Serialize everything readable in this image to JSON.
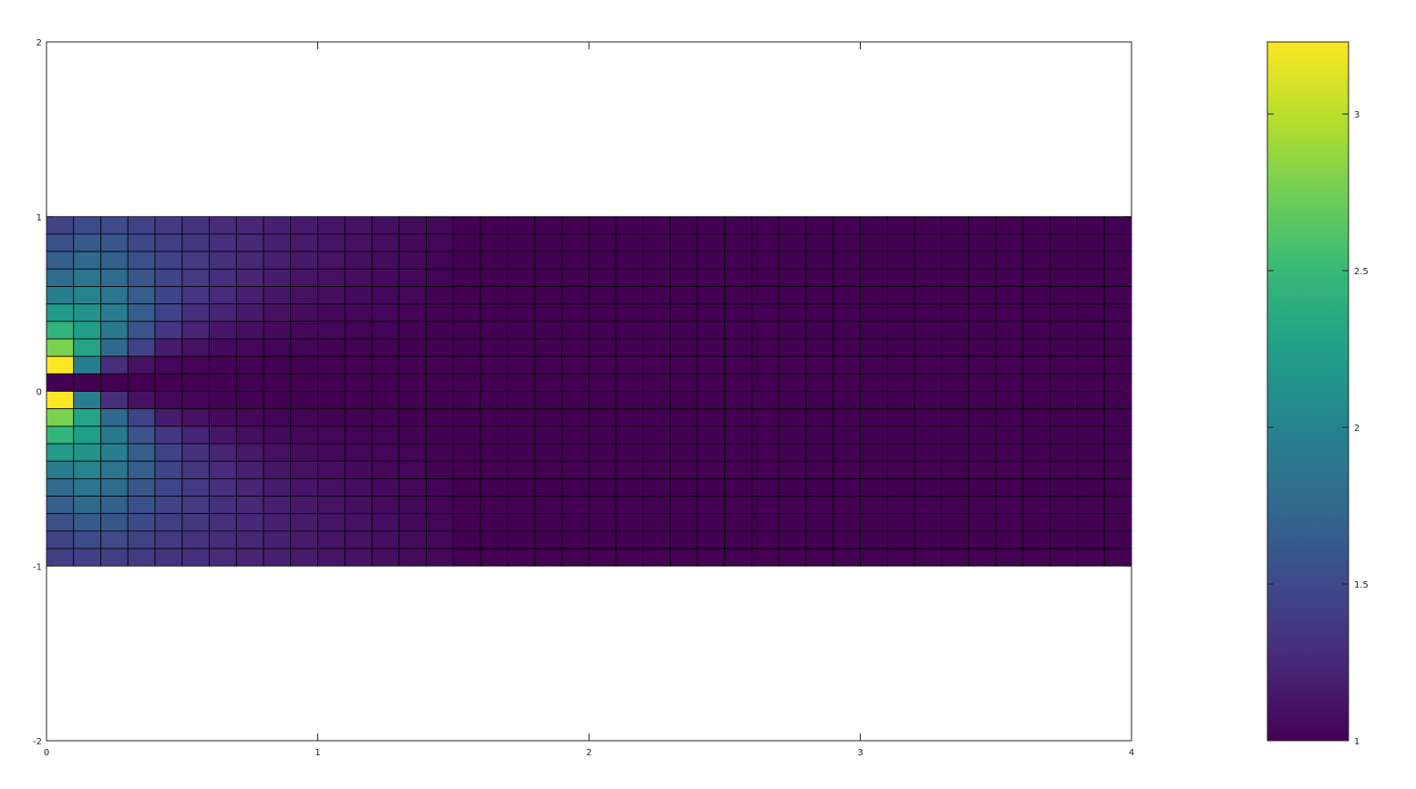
{
  "chart_data": {
    "type": "heatmap",
    "title": "",
    "xlabel": "",
    "ylabel": "",
    "xlim": [
      0,
      4
    ],
    "ylim": [
      -2,
      2
    ],
    "x_ticks": [
      "0",
      "1",
      "2",
      "3",
      "4"
    ],
    "y_ticks": [
      "-2",
      "-1",
      "0",
      "1",
      "2"
    ],
    "grid": false,
    "colormap": "viridis",
    "cell_edges_color": "#000000",
    "x_edges_start": 0,
    "x_step": 0.1,
    "y_top": 1,
    "y_step": 0.1,
    "colorbar": {
      "range": [
        1,
        3.23
      ],
      "ticks": [
        "1",
        "1.5",
        "2",
        "2.5",
        "3"
      ],
      "placement": "right"
    },
    "rows_top_to_bottom": [
      [
        1.45,
        1.52,
        1.5,
        1.44,
        1.38,
        1.33,
        1.28,
        1.24,
        1.2,
        1.16,
        1.13,
        1.11,
        1.09,
        1.07,
        1.04,
        1,
        1,
        1,
        1,
        1,
        1,
        1,
        1,
        1,
        1,
        1,
        1,
        1,
        1,
        1,
        1,
        1,
        1,
        1,
        1,
        1,
        1,
        1,
        1,
        1
      ],
      [
        1.56,
        1.63,
        1.6,
        1.49,
        1.42,
        1.36,
        1.3,
        1.25,
        1.2,
        1.16,
        1.13,
        1.1,
        1.08,
        1.06,
        1.03,
        1,
        1,
        1,
        1,
        1,
        1,
        1,
        1,
        1,
        1,
        1,
        1,
        1,
        1,
        1,
        1,
        1,
        1,
        1,
        1,
        1,
        1,
        1,
        1,
        1
      ],
      [
        1.67,
        1.75,
        1.68,
        1.55,
        1.45,
        1.38,
        1.31,
        1.25,
        1.19,
        1.15,
        1.12,
        1.09,
        1.07,
        1.05,
        1.02,
        1,
        1,
        1,
        1,
        1,
        1,
        1,
        1,
        1,
        1,
        1,
        1,
        1,
        1,
        1,
        1,
        1,
        1,
        1,
        1,
        1,
        1,
        1,
        1,
        1
      ],
      [
        1.78,
        1.88,
        1.78,
        1.6,
        1.47,
        1.38,
        1.3,
        1.23,
        1.17,
        1.13,
        1.1,
        1.08,
        1.06,
        1.04,
        1.02,
        1,
        1,
        1,
        1,
        1,
        1,
        1,
        1,
        1,
        1,
        1,
        1,
        1,
        1,
        1,
        1,
        1,
        1,
        1,
        1,
        1,
        1,
        1,
        1,
        1
      ],
      [
        1.94,
        2.0,
        1.88,
        1.66,
        1.47,
        1.35,
        1.27,
        1.2,
        1.14,
        1.1,
        1.08,
        1.06,
        1.04,
        1.03,
        1.01,
        1,
        1,
        1,
        1,
        1,
        1,
        1,
        1,
        1,
        1,
        1,
        1,
        1,
        1,
        1,
        1,
        1,
        1,
        1,
        1,
        1,
        1,
        1,
        1,
        1
      ],
      [
        2.2,
        2.15,
        1.95,
        1.66,
        1.45,
        1.3,
        1.22,
        1.15,
        1.1,
        1.07,
        1.05,
        1.04,
        1.03,
        1.02,
        1.01,
        1,
        1,
        1,
        1,
        1,
        1,
        1,
        1,
        1,
        1,
        1,
        1,
        1,
        1,
        1,
        1,
        1,
        1,
        1,
        1,
        1,
        1,
        1,
        1,
        1
      ],
      [
        2.45,
        2.25,
        1.9,
        1.58,
        1.35,
        1.22,
        1.14,
        1.09,
        1.06,
        1.04,
        1.03,
        1.02,
        1.02,
        1.01,
        1,
        1,
        1,
        1,
        1,
        1,
        1,
        1,
        1,
        1,
        1,
        1,
        1,
        1,
        1,
        1,
        1,
        1,
        1,
        1,
        1,
        1,
        1,
        1,
        1,
        1
      ],
      [
        2.78,
        2.3,
        1.75,
        1.45,
        1.17,
        1.1,
        1.06,
        1.04,
        1.02,
        1.02,
        1.01,
        1.01,
        1.01,
        1,
        1,
        1,
        1,
        1,
        1,
        1,
        1,
        1,
        1,
        1,
        1,
        1,
        1,
        1,
        1,
        1,
        1,
        1,
        1,
        1,
        1,
        1,
        1,
        1,
        1,
        1
      ],
      [
        3.23,
        1.95,
        1.3,
        1.1,
        1.04,
        1.02,
        1.01,
        1.01,
        1,
        1,
        1,
        1,
        1,
        1,
        1,
        1,
        1,
        1,
        1,
        1,
        1,
        1,
        1,
        1,
        1,
        1,
        1,
        1,
        1,
        1,
        1,
        1,
        1,
        1,
        1,
        1,
        1,
        1,
        1,
        1
      ],
      [
        1,
        1,
        1,
        1,
        1,
        1,
        1,
        1,
        1,
        1,
        1,
        1,
        1,
        1,
        1,
        1,
        1,
        1,
        1,
        1,
        1,
        1,
        1,
        1,
        1,
        1,
        1,
        1,
        1,
        1,
        1,
        1,
        1,
        1,
        1,
        1,
        1,
        1,
        1,
        1
      ],
      [
        3.23,
        1.95,
        1.3,
        1.1,
        1.04,
        1.02,
        1.01,
        1.01,
        1,
        1,
        1,
        1,
        1,
        1,
        1,
        1,
        1,
        1,
        1,
        1,
        1,
        1,
        1,
        1,
        1,
        1,
        1,
        1,
        1,
        1,
        1,
        1,
        1,
        1,
        1,
        1,
        1,
        1,
        1,
        1
      ],
      [
        2.78,
        2.3,
        1.75,
        1.45,
        1.17,
        1.1,
        1.06,
        1.04,
        1.02,
        1.02,
        1.01,
        1.01,
        1.01,
        1,
        1,
        1,
        1,
        1,
        1,
        1,
        1,
        1,
        1,
        1,
        1,
        1,
        1,
        1,
        1,
        1,
        1,
        1,
        1,
        1,
        1,
        1,
        1,
        1,
        1,
        1
      ],
      [
        2.45,
        2.25,
        1.9,
        1.58,
        1.35,
        1.22,
        1.14,
        1.09,
        1.06,
        1.04,
        1.03,
        1.02,
        1.02,
        1.01,
        1,
        1,
        1,
        1,
        1,
        1,
        1,
        1,
        1,
        1,
        1,
        1,
        1,
        1,
        1,
        1,
        1,
        1,
        1,
        1,
        1,
        1,
        1,
        1,
        1,
        1
      ],
      [
        2.2,
        2.15,
        1.95,
        1.66,
        1.45,
        1.3,
        1.22,
        1.15,
        1.1,
        1.07,
        1.05,
        1.04,
        1.03,
        1.02,
        1.01,
        1,
        1,
        1,
        1,
        1,
        1,
        1,
        1,
        1,
        1,
        1,
        1,
        1,
        1,
        1,
        1,
        1,
        1,
        1,
        1,
        1,
        1,
        1,
        1,
        1
      ],
      [
        1.94,
        2.0,
        1.88,
        1.66,
        1.47,
        1.35,
        1.27,
        1.2,
        1.14,
        1.1,
        1.08,
        1.06,
        1.04,
        1.03,
        1.01,
        1,
        1,
        1,
        1,
        1,
        1,
        1,
        1,
        1,
        1,
        1,
        1,
        1,
        1,
        1,
        1,
        1,
        1,
        1,
        1,
        1,
        1,
        1,
        1,
        1
      ],
      [
        1.78,
        1.88,
        1.78,
        1.6,
        1.47,
        1.38,
        1.3,
        1.23,
        1.17,
        1.13,
        1.1,
        1.08,
        1.06,
        1.04,
        1.02,
        1,
        1,
        1,
        1,
        1,
        1,
        1,
        1,
        1,
        1,
        1,
        1,
        1,
        1,
        1,
        1,
        1,
        1,
        1,
        1,
        1,
        1,
        1,
        1,
        1
      ],
      [
        1.67,
        1.75,
        1.68,
        1.55,
        1.45,
        1.38,
        1.31,
        1.25,
        1.19,
        1.15,
        1.12,
        1.09,
        1.07,
        1.05,
        1.02,
        1,
        1,
        1,
        1,
        1,
        1,
        1,
        1,
        1,
        1,
        1,
        1,
        1,
        1,
        1,
        1,
        1,
        1,
        1,
        1,
        1,
        1,
        1,
        1,
        1
      ],
      [
        1.56,
        1.63,
        1.6,
        1.49,
        1.42,
        1.36,
        1.3,
        1.25,
        1.2,
        1.16,
        1.13,
        1.1,
        1.08,
        1.06,
        1.03,
        1,
        1,
        1,
        1,
        1,
        1,
        1,
        1,
        1,
        1,
        1,
        1,
        1,
        1,
        1,
        1,
        1,
        1,
        1,
        1,
        1,
        1,
        1,
        1,
        1
      ],
      [
        1.45,
        1.52,
        1.5,
        1.44,
        1.38,
        1.33,
        1.28,
        1.24,
        1.2,
        1.16,
        1.13,
        1.11,
        1.09,
        1.07,
        1.04,
        1,
        1,
        1,
        1,
        1,
        1,
        1,
        1,
        1,
        1,
        1,
        1,
        1,
        1,
        1,
        1,
        1,
        1,
        1,
        1,
        1,
        1,
        1,
        1,
        1
      ],
      [
        1.42,
        1.43,
        1.42,
        1.39,
        1.34,
        1.3,
        1.26,
        1.22,
        1.19,
        1.16,
        1.13,
        1.11,
        1.09,
        1.07,
        1.04,
        1,
        1,
        1,
        1,
        1,
        1,
        1,
        1,
        1,
        1,
        1,
        1,
        1,
        1,
        1,
        1,
        1,
        1,
        1,
        1,
        1,
        1,
        1,
        1,
        1
      ]
    ]
  }
}
